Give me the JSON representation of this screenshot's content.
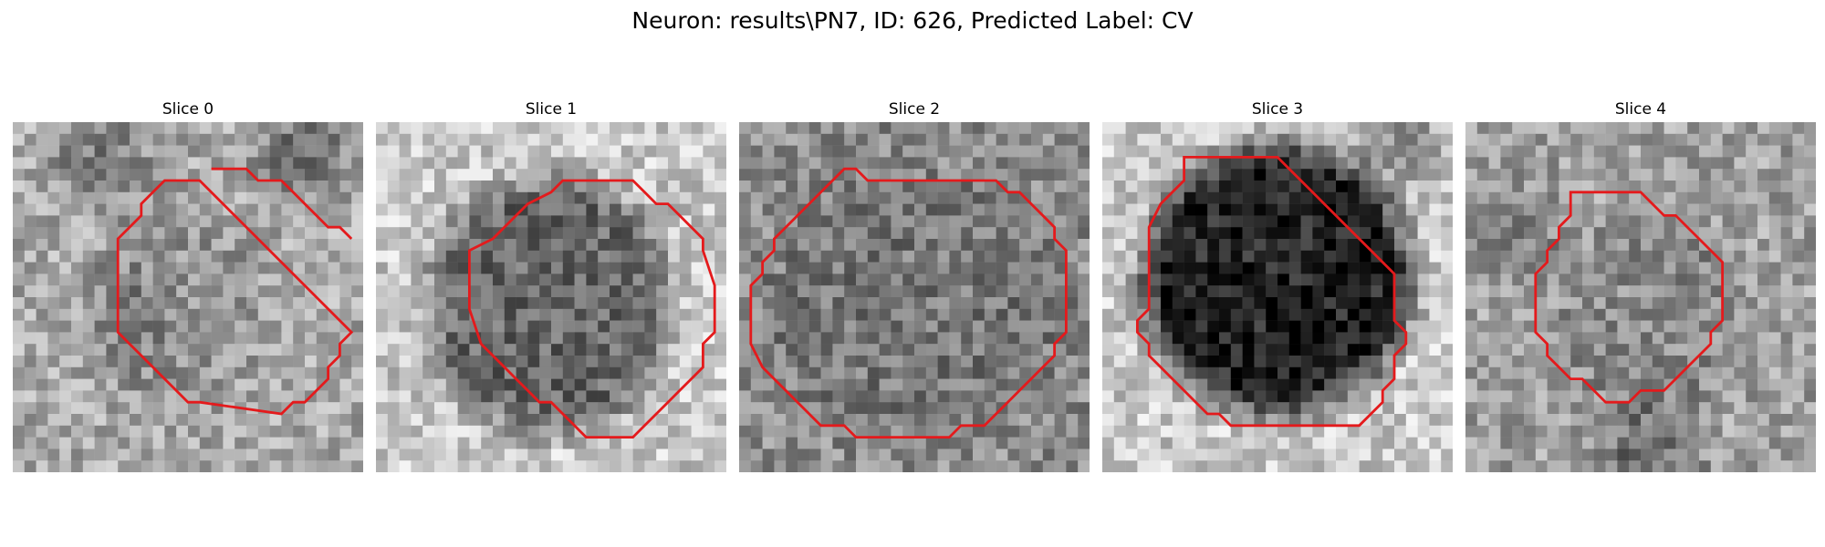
{
  "figure": {
    "title": "Neuron: results\\PN7, ID: 626, Predicted Label: CV"
  },
  "panels": [
    {
      "title": "Slice 0"
    },
    {
      "title": "Slice 1"
    },
    {
      "title": "Slice 2"
    },
    {
      "title": "Slice 3"
    },
    {
      "title": "Slice 4"
    }
  ],
  "colors": {
    "contour": "#e41a1c",
    "colormap": "gray"
  }
}
